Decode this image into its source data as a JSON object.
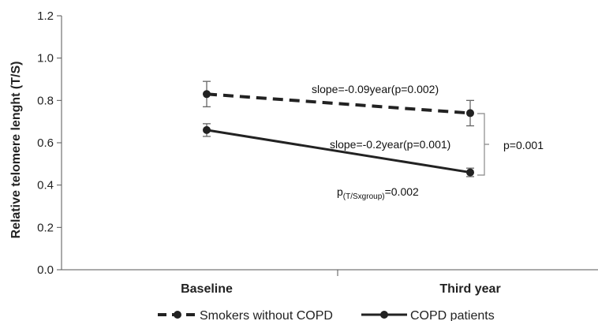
{
  "chart_data": {
    "type": "line",
    "title": "",
    "xlabel": "",
    "ylabel": "Relative telomere lenght (T/S)",
    "ylim": [
      0,
      1.2
    ],
    "yticks": [
      "0.0",
      "0.2",
      "0.4",
      "0.6",
      "0.8",
      "1.0",
      "1.2"
    ],
    "categories": [
      "Baseline",
      "Third year"
    ],
    "grid": false,
    "legend": "bottom",
    "series": [
      {
        "name": "Smokers without COPD",
        "values": [
          0.83,
          0.74
        ],
        "error_low": [
          0.77,
          0.68
        ],
        "error_high": [
          0.89,
          0.8
        ],
        "line_style": "dashed",
        "color": "#222222"
      },
      {
        "name": "COPD patients",
        "values": [
          0.66,
          0.46
        ],
        "error_low": [
          0.63,
          0.44
        ],
        "error_high": [
          0.69,
          0.48
        ],
        "line_style": "solid",
        "color": "#222222"
      }
    ],
    "annotations": {
      "slope_smokers": "slope=-0.09year(p=0.002)",
      "slope_copd": "slope=-0.2year(p=0.001)",
      "bracket_p": "p=0.001",
      "group_p_main": "p",
      "group_p_sub": "(T/Sxgroup)",
      "group_p_value": "=0.002"
    }
  }
}
